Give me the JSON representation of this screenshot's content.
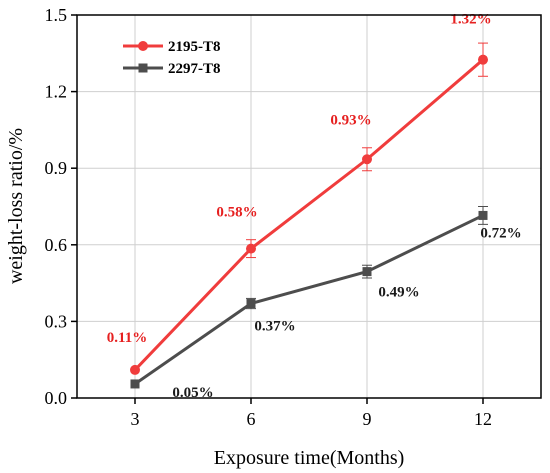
{
  "chart_data": {
    "type": "line",
    "xlabel": "Exposure time(Months)",
    "ylabel": "weight-loss ratio/%",
    "x": [
      3,
      6,
      9,
      12
    ],
    "xticks": [
      "3",
      "6",
      "9",
      "12"
    ],
    "yticks": [
      "0.0",
      "0.3",
      "0.6",
      "0.9",
      "1.2",
      "1.5"
    ],
    "xlim": [
      1.5,
      13.5
    ],
    "ylim": [
      0,
      1.5
    ],
    "grid": true,
    "legend_position": "top-left",
    "series": [
      {
        "name": "2195-T8",
        "color": "#f03c3c",
        "marker": "circle",
        "values": [
          0.11,
          0.585,
          0.935,
          1.325
        ],
        "error": [
          0,
          0.035,
          0.045,
          0.065
        ],
        "labels": [
          "0.11%",
          "0.58%",
          "0.93%",
          "1.32%"
        ],
        "label_color": "#e62020"
      },
      {
        "name": "2297-T8",
        "color": "#4d4d4d",
        "marker": "square",
        "values": [
          0.055,
          0.37,
          0.495,
          0.715
        ],
        "error": [
          0,
          0.02,
          0.025,
          0.035
        ],
        "labels": [
          "0.05%",
          "0.37%",
          "0.49%",
          "0.72%"
        ],
        "label_color": "#1a1a1a"
      }
    ]
  }
}
